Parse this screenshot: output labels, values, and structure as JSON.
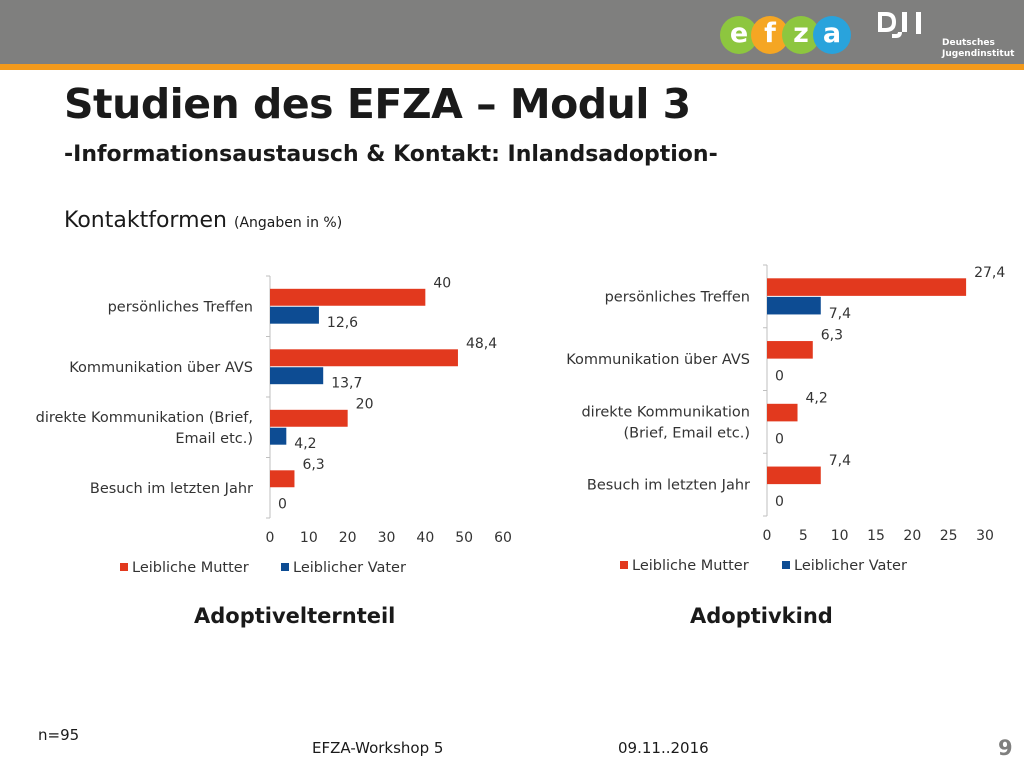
{
  "header": {
    "logo_letters": [
      "e",
      "f",
      "z",
      "a"
    ],
    "logo_colors": [
      "#8dc63f",
      "#f5a623",
      "#8dc63f",
      "#29a3dc"
    ],
    "dji_mark": "DJI",
    "dji_line1": "Deutsches",
    "dji_line2": "Jugendinstitut",
    "bar_color": "#7f7f7e",
    "accent_color": "#f39a1c"
  },
  "title": "Studien des EFZA – Modul 3",
  "subtitle": "-Informationsaustausch & Kontakt: Inlandsadoption-",
  "section": {
    "label": "Kontaktformen",
    "note": "(Angaben in %)"
  },
  "chart_data": [
    {
      "type": "bar",
      "orientation": "horizontal",
      "title": "Adoptivelternteil",
      "categories": [
        [
          "persönliches Treffen"
        ],
        [
          "Kommunikation über AVS"
        ],
        [
          "direkte Kommunikation (Brief,",
          "Email etc.)"
        ],
        [
          "Besuch im letzten Jahr"
        ]
      ],
      "series": [
        {
          "name": "Leibliche Mutter",
          "color": "#e2391e",
          "values": [
            40,
            48.4,
            20,
            6.3
          ],
          "labels": [
            "40",
            "48,4",
            "20",
            "6,3"
          ]
        },
        {
          "name": "Leiblicher Vater",
          "color": "#0d4c93",
          "values": [
            12.6,
            13.7,
            4.2,
            0
          ],
          "labels": [
            "12,6",
            "13,7",
            "4,2",
            "0"
          ]
        }
      ],
      "xlim": [
        0,
        60
      ],
      "ticks": [
        0,
        10,
        20,
        30,
        40,
        50,
        60
      ],
      "legend_position": "bottom"
    },
    {
      "type": "bar",
      "orientation": "horizontal",
      "title": "Adoptivkind",
      "categories": [
        [
          "persönliches Treffen"
        ],
        [
          "Kommunikation  über AVS"
        ],
        [
          "direkte Kommunikation",
          "(Brief, Email etc.)"
        ],
        [
          "Besuch im letzten Jahr"
        ]
      ],
      "series": [
        {
          "name": "Leibliche Mutter",
          "color": "#e2391e",
          "values": [
            27.4,
            6.3,
            4.2,
            7.4
          ],
          "labels": [
            "27,4",
            "6,3",
            "4,2",
            "7,4"
          ]
        },
        {
          "name": "Leiblicher Vater",
          "color": "#0d4c93",
          "values": [
            7.4,
            0,
            0,
            0
          ],
          "labels": [
            "7,4",
            "0",
            "0",
            "0"
          ]
        }
      ],
      "xlim": [
        0,
        30
      ],
      "ticks": [
        0,
        5,
        10,
        15,
        20,
        25,
        30
      ],
      "legend_position": "bottom"
    }
  ],
  "footer": {
    "n": "n=95",
    "event": "EFZA-Workshop 5",
    "date": "09.11..2016",
    "page": "9"
  }
}
